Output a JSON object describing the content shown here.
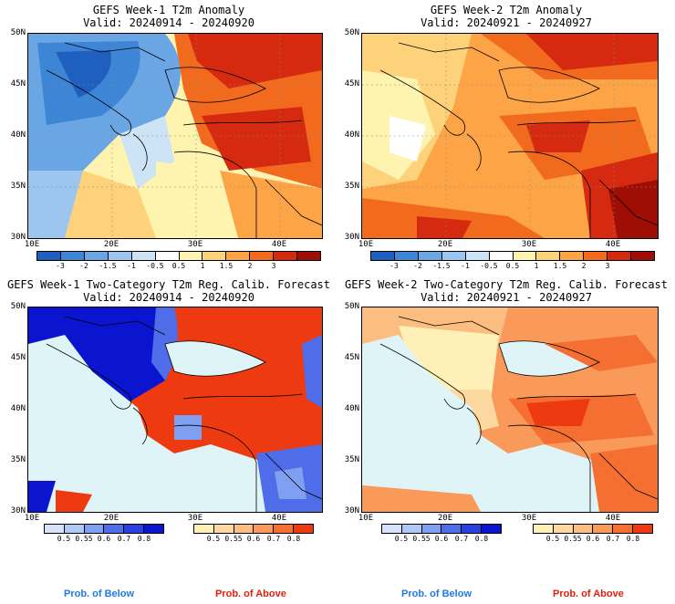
{
  "panels": {
    "p1": {
      "title": "GEFS Week-1 T2m Anomaly",
      "valid": "Valid: 20240914 - 20240920"
    },
    "p2": {
      "title": "GEFS Week-2 T2m Anomaly",
      "valid": "Valid: 20240921 - 20240927"
    },
    "p3": {
      "title": "GEFS Week-1 Two-Category T2m Reg. Calib. Forecast",
      "valid": "Valid: 20240914 - 20240920"
    },
    "p4": {
      "title": "GEFS Week-2 Two-Category T2m Reg. Calib. Forecast",
      "valid": "Valid: 20240921 - 20240927"
    }
  },
  "axes": {
    "lat_labels": [
      "50N",
      "45N",
      "40N",
      "35N",
      "30N"
    ],
    "lon_labels": [
      "10E",
      "20E",
      "30E",
      "40E"
    ]
  },
  "anomaly_colorbar": {
    "labels": [
      "-3",
      "-2",
      "-1.5",
      "-1",
      "-0.5",
      "0.5",
      "1",
      "1.5",
      "2",
      "3"
    ],
    "colors": [
      "#1f5fbf",
      "#3d86d6",
      "#6aa6e4",
      "#9cc6ef",
      "#cde3f6",
      "#ffffff",
      "#fff3b0",
      "#fed27a",
      "#fda546",
      "#f16a1e",
      "#d52a10",
      "#9e0e05"
    ]
  },
  "prob_below_colorbar": {
    "labels": [
      "0.5",
      "0.55",
      "0.6",
      "0.7",
      "0.8"
    ],
    "colors": [
      "#d6e3fb",
      "#b0c8f6",
      "#7f9ff0",
      "#4f6de8",
      "#2c3fe0",
      "#0b15d0"
    ]
  },
  "prob_above_colorbar": {
    "labels": [
      "0.5",
      "0.55",
      "0.6",
      "0.7",
      "0.8"
    ],
    "colors": [
      "#fff0b8",
      "#fdd8a0",
      "#fbbd80",
      "#f99a5a",
      "#f56f33",
      "#ee3a10"
    ]
  },
  "footer": {
    "left_below": "Prob. of Below",
    "left_above": "Prob. of Above",
    "right_below": "Prob. of Below",
    "right_above": "Prob. of Above"
  },
  "colors": {
    "below_text": "#1e7be6",
    "above_text": "#e0200c",
    "sea": "#dff4f7"
  }
}
